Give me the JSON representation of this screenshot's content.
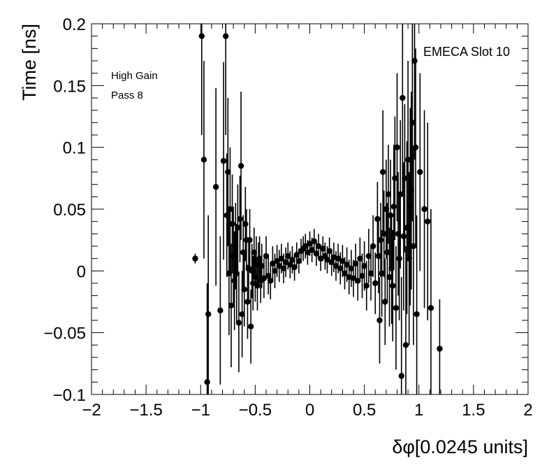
{
  "chart_data": {
    "type": "scatter",
    "title": "",
    "xlabel": "δφ[0.0245 units]",
    "ylabel": "Time [ns]",
    "xlim": [
      -2,
      2
    ],
    "ylim": [
      -0.1,
      0.2
    ],
    "x_ticks": [
      {
        "v": -2,
        "label": "−2"
      },
      {
        "v": -1.5,
        "label": "−1.5"
      },
      {
        "v": -1,
        "label": "−1"
      },
      {
        "v": -0.5,
        "label": "−0.5"
      },
      {
        "v": 0,
        "label": "0"
      },
      {
        "v": 0.5,
        "label": "0.5"
      },
      {
        "v": 1,
        "label": "1"
      },
      {
        "v": 1.5,
        "label": "1.5"
      },
      {
        "v": 2,
        "label": "2"
      }
    ],
    "y_ticks": [
      {
        "v": -0.1,
        "label": "−0.1"
      },
      {
        "v": -0.05,
        "label": "−0.05"
      },
      {
        "v": 0,
        "label": "0"
      },
      {
        "v": 0.05,
        "label": "0.05"
      },
      {
        "v": 0.1,
        "label": "0.1"
      },
      {
        "v": 0.15,
        "label": "0.15"
      },
      {
        "v": 0.2,
        "label": "0.2"
      }
    ],
    "annotations": {
      "top_right": "EMECA Slot 10",
      "line1": "High Gain",
      "line2": "Pass 8"
    },
    "grid": false,
    "marker_color": "#000000",
    "points": [
      {
        "x": -1.05,
        "y": 0.01,
        "err": 0.004
      },
      {
        "x": -0.99,
        "y": 0.19,
        "err": 0.08
      },
      {
        "x": -0.97,
        "y": 0.09,
        "err": 0.08
      },
      {
        "x": -0.94,
        "y": -0.09,
        "err": 0.08
      },
      {
        "x": -0.93,
        "y": -0.035,
        "err": 0.08
      },
      {
        "x": -0.86,
        "y": 0.068,
        "err": 0.08
      },
      {
        "x": -0.82,
        "y": -0.032,
        "err": 0.06
      },
      {
        "x": -0.79,
        "y": 0.089,
        "err": 0.08
      },
      {
        "x": -0.77,
        "y": 0.19,
        "err": 0.08
      },
      {
        "x": -0.76,
        "y": 0.045,
        "err": 0.05
      },
      {
        "x": -0.75,
        "y": 0.08,
        "err": 0.06
      },
      {
        "x": -0.74,
        "y": -0.002,
        "err": 0.05
      },
      {
        "x": -0.73,
        "y": 0.05,
        "err": 0.05
      },
      {
        "x": -0.72,
        "y": -0.028,
        "err": 0.05
      },
      {
        "x": -0.71,
        "y": 0.038,
        "err": 0.04
      },
      {
        "x": -0.7,
        "y": 0.012,
        "err": 0.04
      },
      {
        "x": -0.69,
        "y": -0.008,
        "err": 0.04
      },
      {
        "x": -0.68,
        "y": 0.02,
        "err": 0.035
      },
      {
        "x": -0.67,
        "y": -0.002,
        "err": 0.04
      },
      {
        "x": -0.66,
        "y": 0.035,
        "err": 0.035
      },
      {
        "x": -0.65,
        "y": -0.042,
        "err": 0.04
      },
      {
        "x": -0.64,
        "y": 0.042,
        "err": 0.035
      },
      {
        "x": -0.63,
        "y": 0.085,
        "err": 0.06
      },
      {
        "x": -0.62,
        "y": -0.035,
        "err": 0.035
      },
      {
        "x": -0.61,
        "y": 0.015,
        "err": 0.03
      },
      {
        "x": -0.6,
        "y": -0.015,
        "err": 0.03
      },
      {
        "x": -0.59,
        "y": 0.038,
        "err": 0.03
      },
      {
        "x": -0.58,
        "y": 0.025,
        "err": 0.025
      },
      {
        "x": -0.57,
        "y": -0.025,
        "err": 0.03
      },
      {
        "x": -0.56,
        "y": 0.002,
        "err": 0.025
      },
      {
        "x": -0.55,
        "y": 0.025,
        "err": 0.025
      },
      {
        "x": -0.54,
        "y": -0.045,
        "err": 0.03
      },
      {
        "x": -0.53,
        "y": 0.0,
        "err": 0.022
      },
      {
        "x": -0.52,
        "y": -0.01,
        "err": 0.022
      },
      {
        "x": -0.51,
        "y": 0.015,
        "err": 0.02
      },
      {
        "x": -0.5,
        "y": -0.005,
        "err": 0.02
      },
      {
        "x": -0.49,
        "y": 0.008,
        "err": 0.02
      },
      {
        "x": -0.48,
        "y": -0.012,
        "err": 0.02
      },
      {
        "x": -0.47,
        "y": 0.005,
        "err": 0.018
      },
      {
        "x": -0.46,
        "y": 0.01,
        "err": 0.018
      },
      {
        "x": -0.45,
        "y": -0.008,
        "err": 0.018
      },
      {
        "x": -0.44,
        "y": 0.004,
        "err": 0.018
      },
      {
        "x": -0.42,
        "y": -0.006,
        "err": 0.016
      },
      {
        "x": -0.4,
        "y": 0.012,
        "err": 0.016
      },
      {
        "x": -0.38,
        "y": -0.004,
        "err": 0.015
      },
      {
        "x": -0.36,
        "y": -0.008,
        "err": 0.015
      },
      {
        "x": -0.34,
        "y": 0.006,
        "err": 0.014
      },
      {
        "x": -0.32,
        "y": 0.0,
        "err": 0.014
      },
      {
        "x": -0.3,
        "y": 0.008,
        "err": 0.013
      },
      {
        "x": -0.28,
        "y": 0.004,
        "err": 0.013
      },
      {
        "x": -0.26,
        "y": 0.01,
        "err": 0.012
      },
      {
        "x": -0.24,
        "y": 0.002,
        "err": 0.012
      },
      {
        "x": -0.22,
        "y": 0.007,
        "err": 0.012
      },
      {
        "x": -0.2,
        "y": 0.012,
        "err": 0.011
      },
      {
        "x": -0.18,
        "y": 0.005,
        "err": 0.011
      },
      {
        "x": -0.16,
        "y": 0.009,
        "err": 0.011
      },
      {
        "x": -0.14,
        "y": 0.003,
        "err": 0.011
      },
      {
        "x": -0.12,
        "y": 0.013,
        "err": 0.01
      },
      {
        "x": -0.1,
        "y": 0.008,
        "err": 0.01
      },
      {
        "x": -0.08,
        "y": 0.016,
        "err": 0.01
      },
      {
        "x": -0.06,
        "y": 0.018,
        "err": 0.01
      },
      {
        "x": -0.04,
        "y": 0.02,
        "err": 0.01
      },
      {
        "x": -0.02,
        "y": 0.015,
        "err": 0.01
      },
      {
        "x": 0.0,
        "y": 0.022,
        "err": 0.01
      },
      {
        "x": 0.02,
        "y": 0.017,
        "err": 0.01
      },
      {
        "x": 0.04,
        "y": 0.024,
        "err": 0.01
      },
      {
        "x": 0.06,
        "y": 0.014,
        "err": 0.01
      },
      {
        "x": 0.08,
        "y": 0.02,
        "err": 0.01
      },
      {
        "x": 0.1,
        "y": 0.01,
        "err": 0.01
      },
      {
        "x": 0.12,
        "y": 0.018,
        "err": 0.01
      },
      {
        "x": 0.14,
        "y": 0.012,
        "err": 0.011
      },
      {
        "x": 0.16,
        "y": 0.009,
        "err": 0.011
      },
      {
        "x": 0.18,
        "y": 0.016,
        "err": 0.011
      },
      {
        "x": 0.2,
        "y": 0.007,
        "err": 0.011
      },
      {
        "x": 0.22,
        "y": 0.011,
        "err": 0.012
      },
      {
        "x": 0.24,
        "y": 0.004,
        "err": 0.012
      },
      {
        "x": 0.26,
        "y": 0.01,
        "err": 0.012
      },
      {
        "x": 0.28,
        "y": 0.002,
        "err": 0.013
      },
      {
        "x": 0.3,
        "y": 0.008,
        "err": 0.013
      },
      {
        "x": 0.32,
        "y": -0.002,
        "err": 0.013
      },
      {
        "x": 0.34,
        "y": 0.005,
        "err": 0.014
      },
      {
        "x": 0.36,
        "y": -0.005,
        "err": 0.014
      },
      {
        "x": 0.38,
        "y": 0.002,
        "err": 0.015
      },
      {
        "x": 0.4,
        "y": -0.006,
        "err": 0.015
      },
      {
        "x": 0.42,
        "y": 0.006,
        "err": 0.016
      },
      {
        "x": 0.44,
        "y": -0.008,
        "err": 0.016
      },
      {
        "x": 0.46,
        "y": 0.01,
        "err": 0.017
      },
      {
        "x": 0.48,
        "y": -0.004,
        "err": 0.018
      },
      {
        "x": 0.5,
        "y": 0.004,
        "err": 0.02
      },
      {
        "x": 0.52,
        "y": -0.012,
        "err": 0.02
      },
      {
        "x": 0.54,
        "y": 0.012,
        "err": 0.022
      },
      {
        "x": 0.56,
        "y": -0.002,
        "err": 0.022
      },
      {
        "x": 0.58,
        "y": 0.02,
        "err": 0.025
      },
      {
        "x": 0.6,
        "y": -0.01,
        "err": 0.025
      },
      {
        "x": 0.62,
        "y": 0.042,
        "err": 0.03
      },
      {
        "x": 0.63,
        "y": 0.012,
        "err": 0.03
      },
      {
        "x": 0.64,
        "y": -0.04,
        "err": 0.035
      },
      {
        "x": 0.65,
        "y": 0.025,
        "err": 0.03
      },
      {
        "x": 0.66,
        "y": -0.002,
        "err": 0.035
      },
      {
        "x": 0.67,
        "y": 0.08,
        "err": 0.05
      },
      {
        "x": 0.68,
        "y": 0.03,
        "err": 0.035
      },
      {
        "x": 0.69,
        "y": -0.025,
        "err": 0.035
      },
      {
        "x": 0.7,
        "y": 0.05,
        "err": 0.04
      },
      {
        "x": 0.71,
        "y": 0.015,
        "err": 0.04
      },
      {
        "x": 0.72,
        "y": 0.062,
        "err": 0.04
      },
      {
        "x": 0.73,
        "y": -0.005,
        "err": 0.04
      },
      {
        "x": 0.74,
        "y": 0.045,
        "err": 0.045
      },
      {
        "x": 0.75,
        "y": 0.002,
        "err": 0.045
      },
      {
        "x": 0.76,
        "y": -0.012,
        "err": 0.045
      },
      {
        "x": 0.77,
        "y": 0.052,
        "err": 0.05
      },
      {
        "x": 0.78,
        "y": 0.075,
        "err": 0.05
      },
      {
        "x": 0.79,
        "y": -0.03,
        "err": 0.05
      },
      {
        "x": 0.8,
        "y": 0.1,
        "err": 0.06
      },
      {
        "x": 0.81,
        "y": 0.03,
        "err": 0.05
      },
      {
        "x": 0.82,
        "y": 0.01,
        "err": 0.05
      },
      {
        "x": 0.83,
        "y": 0.062,
        "err": 0.06
      },
      {
        "x": 0.84,
        "y": -0.085,
        "err": 0.08
      },
      {
        "x": 0.85,
        "y": 0.14,
        "err": 0.08
      },
      {
        "x": 0.86,
        "y": 0.028,
        "err": 0.06
      },
      {
        "x": 0.87,
        "y": 0.075,
        "err": 0.06
      },
      {
        "x": 0.88,
        "y": -0.06,
        "err": 0.08
      },
      {
        "x": 0.89,
        "y": 0.035,
        "err": 0.07
      },
      {
        "x": 0.9,
        "y": 0.09,
        "err": 0.08
      },
      {
        "x": 0.91,
        "y": 0.01,
        "err": 0.07
      },
      {
        "x": 0.92,
        "y": 0.052,
        "err": 0.08
      },
      {
        "x": 0.93,
        "y": 0.065,
        "err": 0.08
      },
      {
        "x": 0.94,
        "y": 0.12,
        "err": 0.08
      },
      {
        "x": 0.95,
        "y": 0.02,
        "err": 0.08
      },
      {
        "x": 0.96,
        "y": 0.17,
        "err": 0.08
      },
      {
        "x": 0.97,
        "y": 0.1,
        "err": 0.08
      },
      {
        "x": 0.98,
        "y": -0.035,
        "err": 0.08
      },
      {
        "x": 1.01,
        "y": 0.08,
        "err": 0.08
      },
      {
        "x": 1.05,
        "y": 0.05,
        "err": 0.08
      },
      {
        "x": 1.08,
        "y": 0.04,
        "err": 0.08
      },
      {
        "x": 1.11,
        "y": -0.03,
        "err": 0.08
      },
      {
        "x": 1.19,
        "y": -0.063,
        "err": 0.04
      }
    ]
  }
}
